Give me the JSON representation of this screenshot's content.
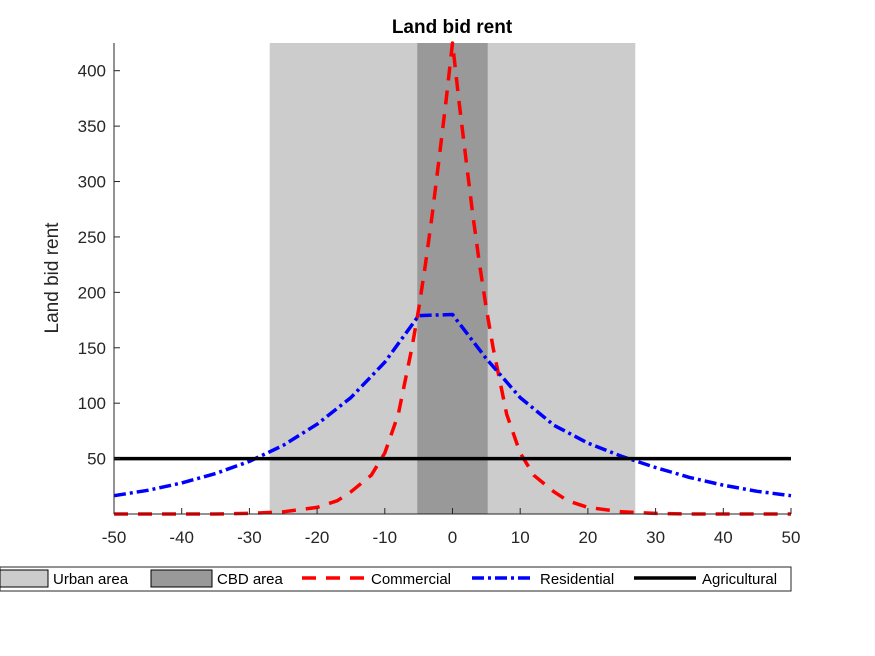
{
  "chart_data": {
    "type": "line",
    "title": "Land bid rent",
    "xlabel": "",
    "ylabel": "Land bid rent",
    "xlim": [
      -50,
      50
    ],
    "ylim": [
      0,
      425
    ],
    "xticks": [
      -50,
      -40,
      -30,
      -20,
      -10,
      0,
      10,
      20,
      30,
      40,
      50
    ],
    "yticks": [
      50,
      100,
      150,
      200,
      250,
      300,
      350,
      400
    ],
    "grid": false,
    "legend_position": "bottom",
    "regions": [
      {
        "name": "Urban area",
        "x_range": [
          -27,
          27
        ],
        "color": "#cccccc"
      },
      {
        "name": "CBD area",
        "x_range": [
          -5.2,
          5.2
        ],
        "color": "#999999"
      }
    ],
    "series": [
      {
        "name": "Commercial",
        "style": "dashed",
        "color": "#ff0000",
        "x": [
          -50,
          -45,
          -40,
          -35,
          -30,
          -25,
          -20,
          -17,
          -15,
          -12,
          -10,
          -8,
          -6,
          -5,
          -4,
          -3,
          -2,
          -1,
          0,
          1,
          2,
          3,
          4,
          5,
          6,
          8,
          10,
          12,
          15,
          17,
          20,
          25,
          30,
          35,
          40,
          45,
          50
        ],
        "y": [
          0,
          0,
          0,
          0,
          0.5,
          2,
          6,
          12,
          20,
          35,
          55,
          90,
          150,
          185,
          225,
          270,
          320,
          370,
          425,
          370,
          320,
          270,
          225,
          185,
          150,
          90,
          55,
          35,
          20,
          12,
          6,
          2,
          0.5,
          0,
          0,
          0,
          0
        ]
      },
      {
        "name": "Residential",
        "style": "dash-dot",
        "color": "#0000ff",
        "x": [
          -50,
          -45,
          -40,
          -35,
          -30,
          -25,
          -20,
          -15,
          -10,
          -5,
          0,
          5,
          10,
          15,
          20,
          25,
          30,
          35,
          40,
          45,
          50
        ],
        "y": [
          16.5,
          21.4,
          28,
          36.5,
          47.5,
          62,
          81,
          105,
          137,
          179,
          180,
          140,
          105,
          80,
          64,
          52,
          42,
          33,
          26,
          20.5,
          16.5
        ]
      },
      {
        "name": "Agricultural",
        "style": "solid",
        "color": "#000000",
        "x": [
          -50,
          50
        ],
        "y": [
          50,
          50
        ]
      }
    ]
  },
  "legend": {
    "items": [
      {
        "label": "Urban area"
      },
      {
        "label": "CBD area"
      },
      {
        "label": "Commercial"
      },
      {
        "label": "Residential"
      },
      {
        "label": "Agricultural"
      }
    ]
  }
}
